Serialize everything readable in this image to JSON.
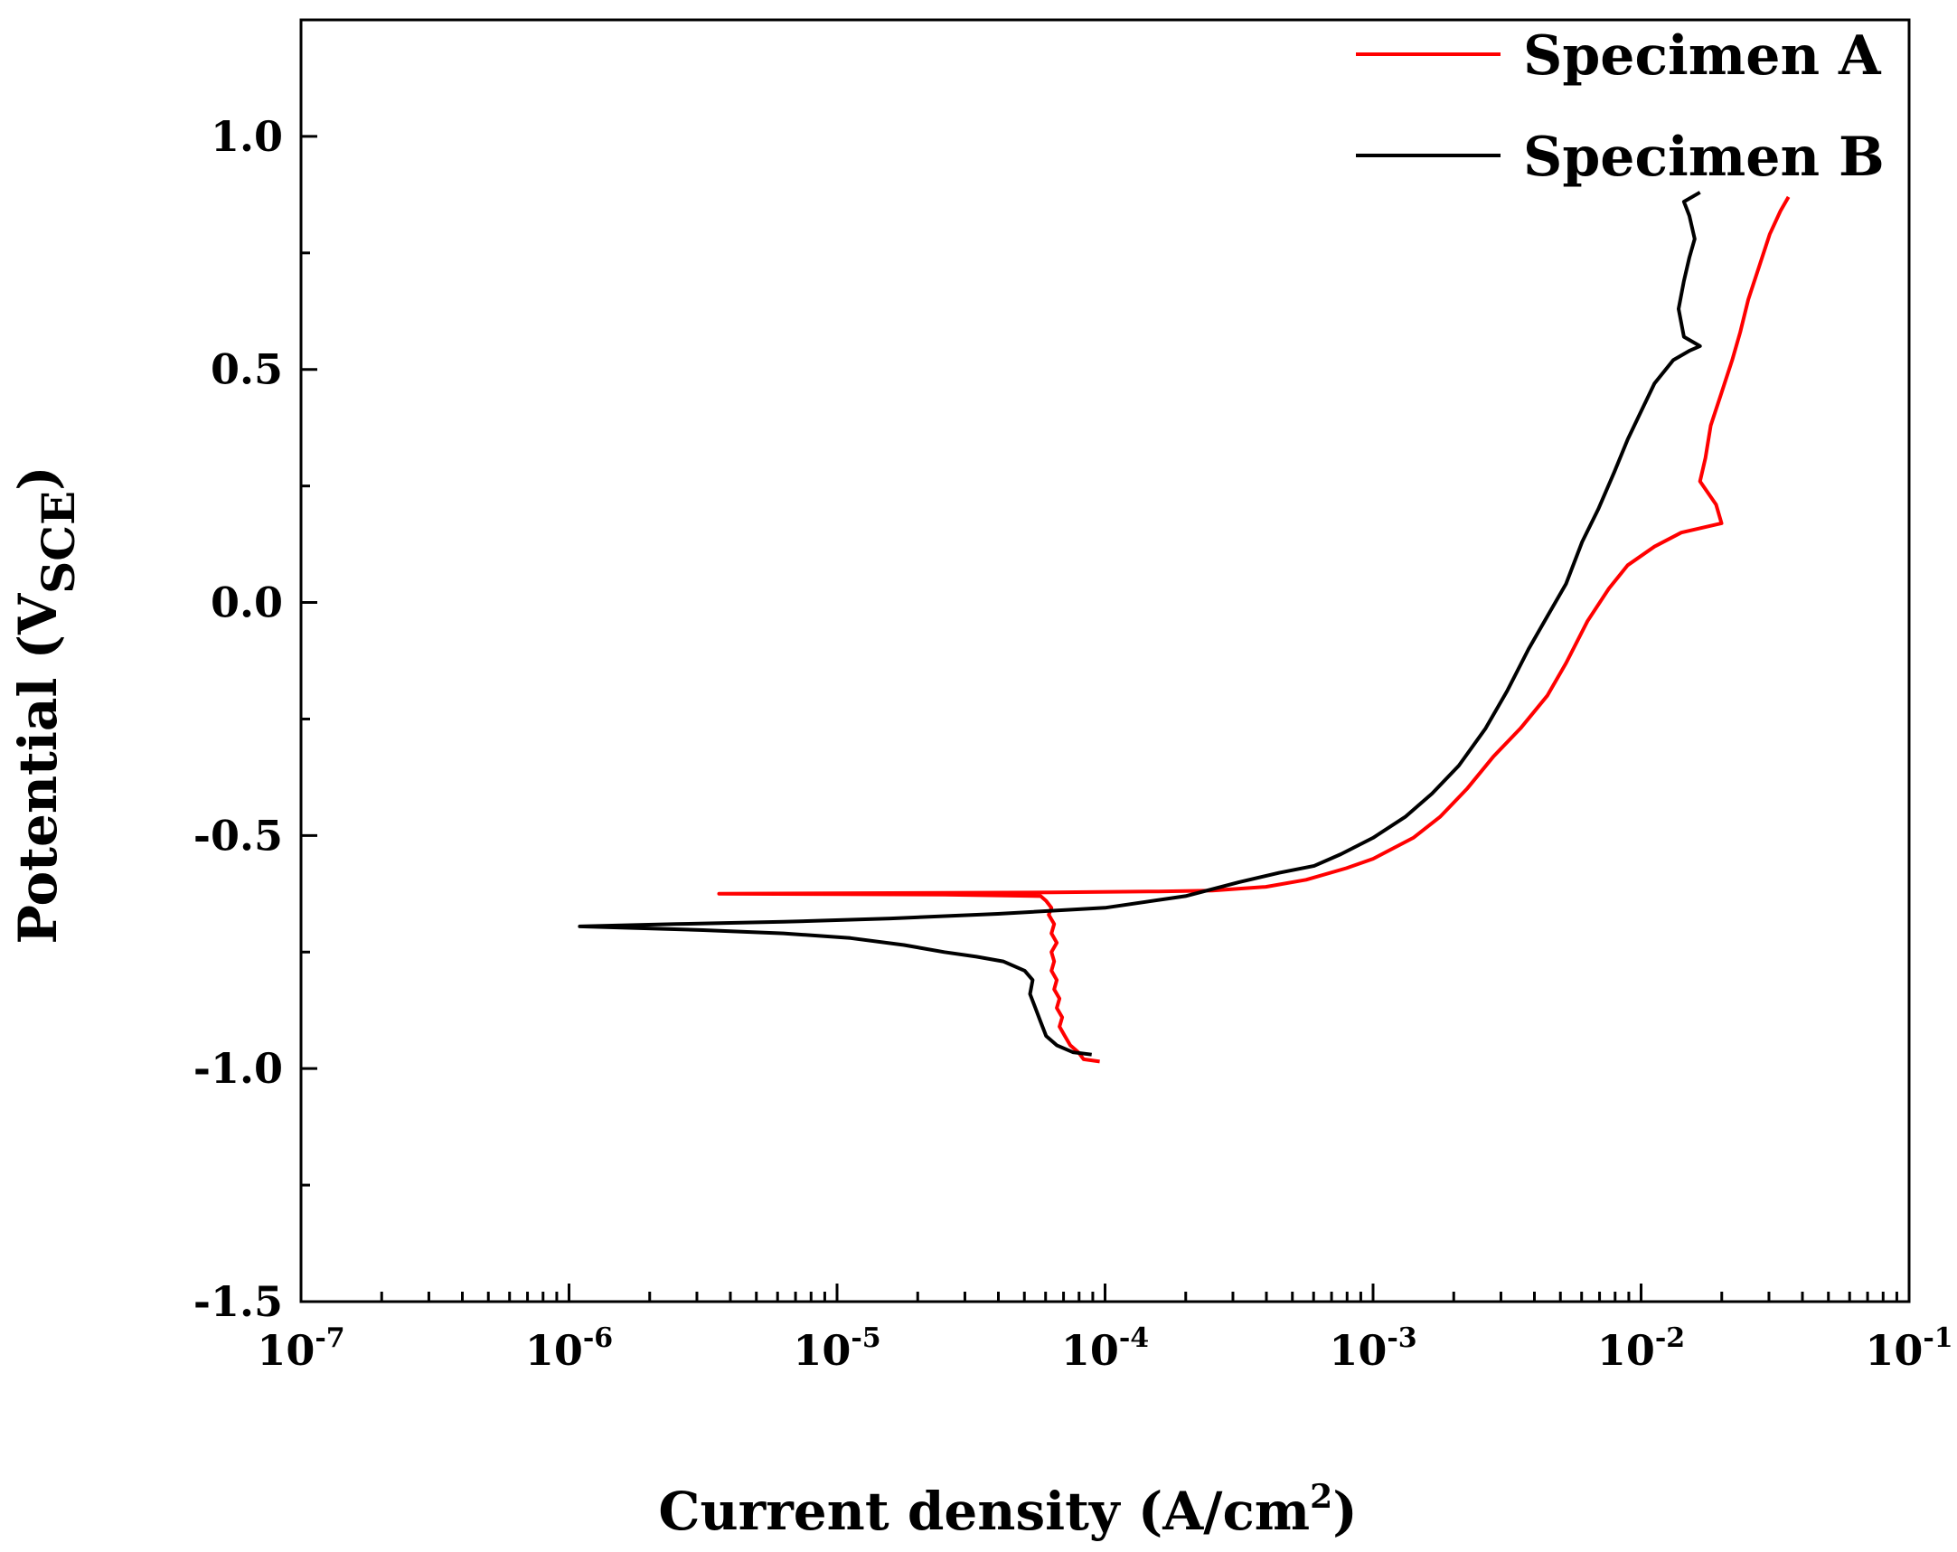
{
  "chart_data": {
    "type": "line",
    "title": "",
    "xlabel": "Current density (A/cm",
    "xlabel_sup": "2",
    "xlabel_close": ")",
    "ylabel": "Potential (V",
    "ylabel_sub": "SCE",
    "ylabel_close": ")",
    "xscale": "log",
    "xlim_exp": [
      -7,
      -1
    ],
    "ylim": [
      -1.5,
      1.25
    ],
    "x_tick_base": "10",
    "x_ticks": [
      {
        "exp": -7,
        "label": "-7"
      },
      {
        "exp": -6,
        "label": "-6"
      },
      {
        "exp": -5,
        "label": "-5"
      },
      {
        "exp": -4,
        "label": "-4"
      },
      {
        "exp": -3,
        "label": "-3"
      },
      {
        "exp": -2,
        "label": "-2"
      },
      {
        "exp": -1,
        "label": "-1"
      }
    ],
    "y_ticks": [
      {
        "value": -1.5,
        "label": "-1.5"
      },
      {
        "value": -1.0,
        "label": "-1.0"
      },
      {
        "value": -0.5,
        "label": "-0.5"
      },
      {
        "value": 0.0,
        "label": "0.0"
      },
      {
        "value": 0.5,
        "label": "0.5"
      },
      {
        "value": 1.0,
        "label": "1.0"
      }
    ],
    "legend_position": "top-right",
    "series": [
      {
        "name": "Specimen A",
        "color": "#ff0000",
        "points": [
          [
            -4.02,
            -0.985
          ],
          [
            -4.08,
            -0.98
          ],
          [
            -4.1,
            -0.965
          ],
          [
            -4.13,
            -0.95
          ],
          [
            -4.15,
            -0.93
          ],
          [
            -4.17,
            -0.91
          ],
          [
            -4.16,
            -0.89
          ],
          [
            -4.18,
            -0.87
          ],
          [
            -4.17,
            -0.85
          ],
          [
            -4.19,
            -0.83
          ],
          [
            -4.18,
            -0.81
          ],
          [
            -4.2,
            -0.79
          ],
          [
            -4.19,
            -0.77
          ],
          [
            -4.2,
            -0.75
          ],
          [
            -4.18,
            -0.73
          ],
          [
            -4.2,
            -0.71
          ],
          [
            -4.19,
            -0.69
          ],
          [
            -4.21,
            -0.67
          ],
          [
            -4.2,
            -0.655
          ],
          [
            -4.22,
            -0.64
          ],
          [
            -4.24,
            -0.63
          ],
          [
            -4.6,
            -0.627
          ],
          [
            -5.0,
            -0.626
          ],
          [
            -5.44,
            -0.625
          ],
          [
            -4.2,
            -0.622
          ],
          [
            -3.8,
            -0.62
          ],
          [
            -3.6,
            -0.618
          ],
          [
            -3.4,
            -0.61
          ],
          [
            -3.25,
            -0.595
          ],
          [
            -3.1,
            -0.57
          ],
          [
            -3.0,
            -0.55
          ],
          [
            -2.85,
            -0.505
          ],
          [
            -2.75,
            -0.46
          ],
          [
            -2.65,
            -0.4
          ],
          [
            -2.55,
            -0.33
          ],
          [
            -2.45,
            -0.27
          ],
          [
            -2.35,
            -0.2
          ],
          [
            -2.28,
            -0.13
          ],
          [
            -2.2,
            -0.04
          ],
          [
            -2.12,
            0.03
          ],
          [
            -2.05,
            0.08
          ],
          [
            -1.95,
            0.12
          ],
          [
            -1.85,
            0.15
          ],
          [
            -1.7,
            0.17
          ],
          [
            -1.72,
            0.21
          ],
          [
            -1.78,
            0.26
          ],
          [
            -1.76,
            0.31
          ],
          [
            -1.74,
            0.38
          ],
          [
            -1.7,
            0.45
          ],
          [
            -1.66,
            0.52
          ],
          [
            -1.63,
            0.58
          ],
          [
            -1.6,
            0.65
          ],
          [
            -1.56,
            0.72
          ],
          [
            -1.52,
            0.79
          ],
          [
            -1.48,
            0.84
          ],
          [
            -1.45,
            0.87
          ]
        ]
      },
      {
        "name": "Specimen B",
        "color": "#000000",
        "points": [
          [
            -4.05,
            -0.97
          ],
          [
            -4.12,
            -0.965
          ],
          [
            -4.18,
            -0.95
          ],
          [
            -4.22,
            -0.93
          ],
          [
            -4.24,
            -0.9
          ],
          [
            -4.26,
            -0.87
          ],
          [
            -4.28,
            -0.84
          ],
          [
            -4.27,
            -0.81
          ],
          [
            -4.3,
            -0.79
          ],
          [
            -4.38,
            -0.77
          ],
          [
            -4.48,
            -0.76
          ],
          [
            -4.6,
            -0.75
          ],
          [
            -4.75,
            -0.735
          ],
          [
            -4.95,
            -0.72
          ],
          [
            -5.2,
            -0.71
          ],
          [
            -5.5,
            -0.703
          ],
          [
            -5.96,
            -0.695
          ],
          [
            -5.6,
            -0.69
          ],
          [
            -5.2,
            -0.685
          ],
          [
            -4.8,
            -0.678
          ],
          [
            -4.4,
            -0.668
          ],
          [
            -4.0,
            -0.655
          ],
          [
            -3.7,
            -0.63
          ],
          [
            -3.5,
            -0.6
          ],
          [
            -3.35,
            -0.58
          ],
          [
            -3.22,
            -0.565
          ],
          [
            -3.12,
            -0.54
          ],
          [
            -3.0,
            -0.505
          ],
          [
            -2.88,
            -0.46
          ],
          [
            -2.78,
            -0.41
          ],
          [
            -2.68,
            -0.35
          ],
          [
            -2.58,
            -0.27
          ],
          [
            -2.5,
            -0.19
          ],
          [
            -2.42,
            -0.1
          ],
          [
            -2.35,
            -0.03
          ],
          [
            -2.28,
            0.04
          ],
          [
            -2.22,
            0.13
          ],
          [
            -2.16,
            0.2
          ],
          [
            -2.1,
            0.28
          ],
          [
            -2.05,
            0.35
          ],
          [
            -2.0,
            0.41
          ],
          [
            -1.95,
            0.47
          ],
          [
            -1.88,
            0.52
          ],
          [
            -1.82,
            0.54
          ],
          [
            -1.78,
            0.55
          ],
          [
            -1.84,
            0.57
          ],
          [
            -1.86,
            0.63
          ],
          [
            -1.84,
            0.69
          ],
          [
            -1.82,
            0.74
          ],
          [
            -1.8,
            0.78
          ],
          [
            -1.82,
            0.83
          ],
          [
            -1.84,
            0.86
          ],
          [
            -1.78,
            0.88
          ]
        ]
      }
    ]
  }
}
